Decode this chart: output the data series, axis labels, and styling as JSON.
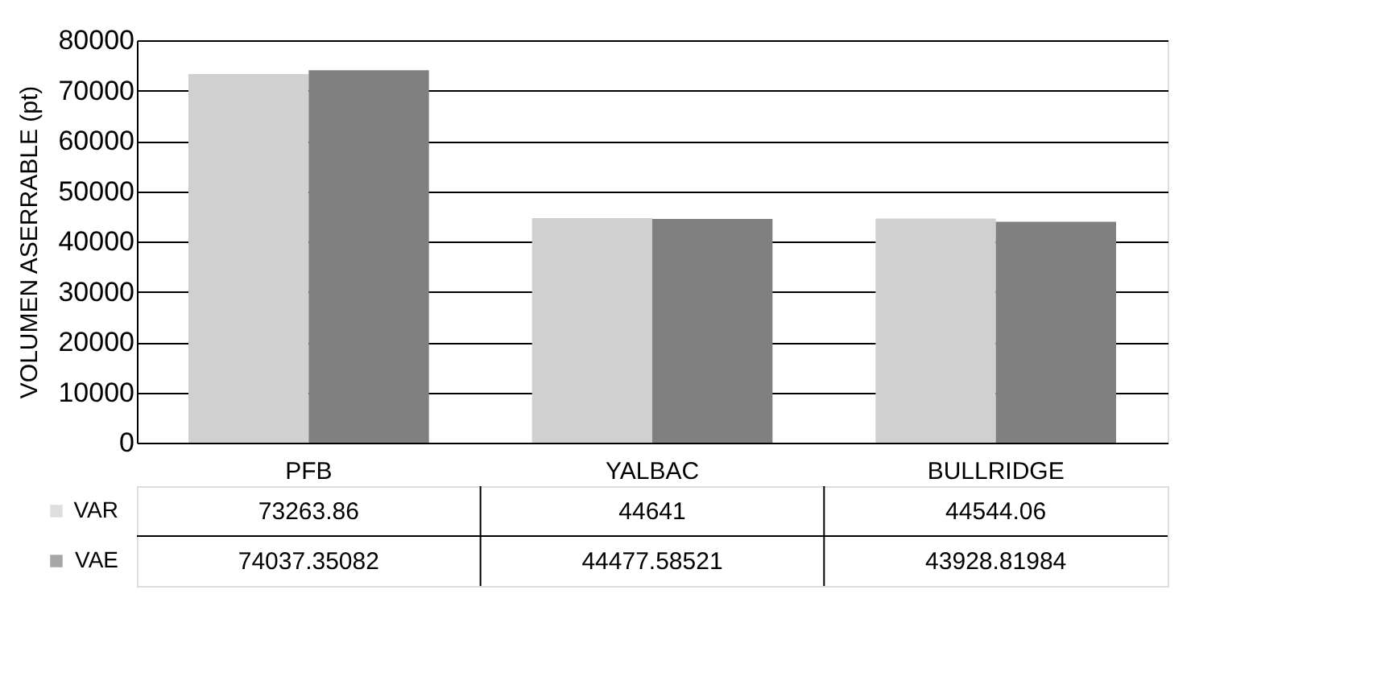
{
  "chart_data": {
    "type": "bar",
    "ylabel": "VOLUMEN ASERRABLE (pt)",
    "categories": [
      "PFB",
      "YALBAC",
      "BULLRIDGE"
    ],
    "series": [
      {
        "name": "VAR",
        "color": "#d0d0d0",
        "values": [
          73263.86,
          44641,
          44544.06
        ]
      },
      {
        "name": "VAE",
        "color": "#808080",
        "values": [
          74037.35082,
          44477.58521,
          43928.81984
        ]
      }
    ],
    "ylim": [
      0,
      80000
    ],
    "yticks": [
      0,
      10000,
      20000,
      30000,
      40000,
      50000,
      60000,
      70000,
      80000
    ],
    "grid": "y",
    "legend": "bottom",
    "data_labels": true
  }
}
